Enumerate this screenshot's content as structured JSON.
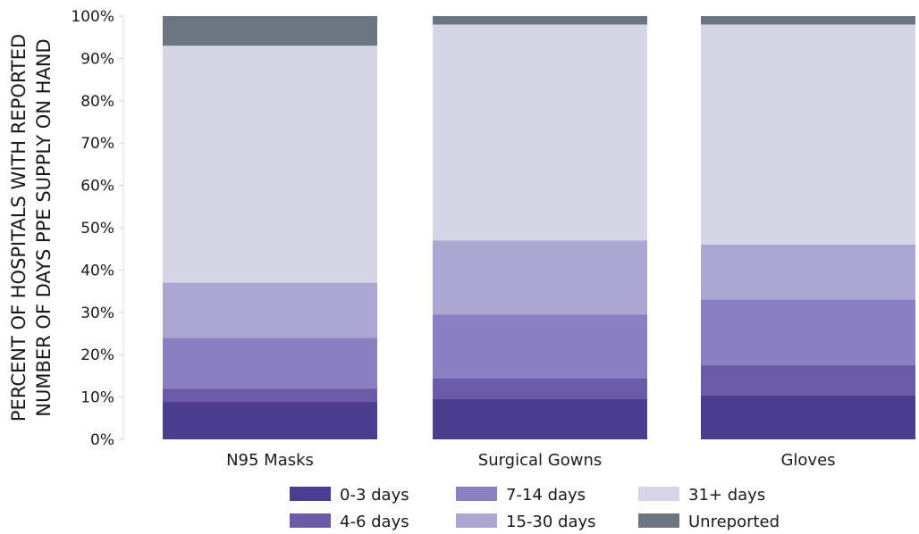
{
  "chart_data": {
    "type": "bar",
    "stacked": true,
    "title": "",
    "xlabel": "",
    "ylabel_lines": [
      "PERCENT OF HOSPITALS WITH REPORTED",
      "NUMBER OF DAYS PPE SUPPLY ON HAND"
    ],
    "ylim": [
      0,
      100
    ],
    "yticks": [
      0,
      10,
      20,
      30,
      40,
      50,
      60,
      70,
      80,
      90,
      100
    ],
    "ytick_labels": [
      "0%",
      "10%",
      "20%",
      "30%",
      "40%",
      "50%",
      "60%",
      "70%",
      "80%",
      "90%",
      "100%"
    ],
    "categories": [
      "N95 Masks",
      "Surgical Gowns",
      "Gloves"
    ],
    "legend_position": "bottom",
    "series": [
      {
        "name": "0-3 days",
        "color": "#4b3d8f",
        "values": [
          9,
          9.5,
          10.5
        ]
      },
      {
        "name": "4-6 days",
        "color": "#6a5aa8",
        "values": [
          3,
          5,
          7
        ]
      },
      {
        "name": "7-14 days",
        "color": "#8a7fc0",
        "values": [
          12,
          15,
          15.5
        ]
      },
      {
        "name": "15-30 days",
        "color": "#aca6d2",
        "values": [
          13,
          17.5,
          13
        ]
      },
      {
        "name": "31+ days",
        "color": "#d5d5e6",
        "values": [
          56,
          51,
          52
        ]
      },
      {
        "name": "Unreported",
        "color": "#6c7582",
        "values": [
          7,
          2,
          2
        ]
      }
    ]
  }
}
